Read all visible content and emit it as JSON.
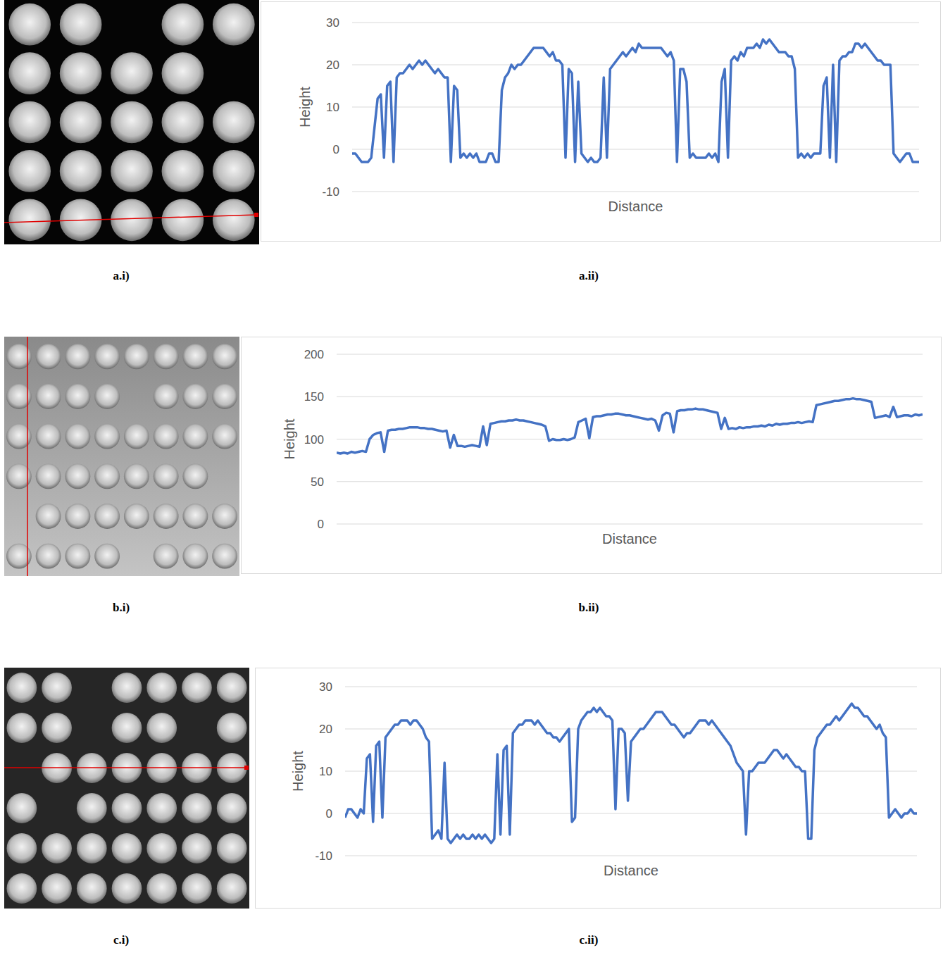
{
  "chart_data": [
    {
      "type": "line",
      "caption": "a.ii)",
      "x_label": "Distance",
      "y_label": "Height",
      "color": "#4472c4",
      "ylim": [
        -10,
        30
      ],
      "yticks": [
        -10,
        0,
        10,
        20,
        30
      ],
      "grid": true,
      "tick_labels": "y",
      "values": [
        -1,
        -1,
        -2,
        -3,
        -3,
        -3,
        -2,
        5,
        12,
        13,
        -2,
        15,
        16,
        -3,
        17,
        18,
        18,
        19,
        20,
        19,
        20,
        21,
        20,
        21,
        20,
        19,
        18,
        19,
        18,
        17,
        17,
        -3,
        15,
        14,
        -2,
        -1,
        -2,
        -1,
        -2,
        -1,
        -3,
        -3,
        -3,
        -1,
        -1,
        -3,
        -3,
        14,
        17,
        18,
        20,
        19,
        20,
        20,
        21,
        22,
        23,
        24,
        24,
        24,
        24,
        23,
        22,
        23,
        21,
        21,
        20,
        -2,
        19,
        18,
        -3,
        16,
        -1,
        -2,
        -3,
        -2,
        -3,
        -3,
        -2,
        17,
        -2,
        19,
        20,
        21,
        22,
        23,
        22,
        23,
        24,
        23,
        25,
        24,
        24,
        24,
        24,
        24,
        24,
        24,
        23,
        22,
        23,
        21,
        -3,
        19,
        19,
        16,
        -2,
        -1,
        -2,
        -2,
        -2,
        -2,
        -1,
        -2,
        -1,
        -3,
        16,
        19,
        -2,
        21,
        22,
        21,
        23,
        22,
        24,
        24,
        24,
        25,
        24,
        26,
        25,
        26,
        25,
        24,
        23,
        23,
        23,
        22,
        22,
        19,
        -2,
        -1,
        -2,
        -1,
        -2,
        -1,
        -1,
        -1,
        15,
        17,
        -2,
        20,
        -3,
        21,
        22,
        22,
        23,
        23,
        25,
        25,
        24,
        25,
        24,
        23,
        22,
        21,
        21,
        20,
        20,
        20,
        -1,
        -2,
        -3,
        -2,
        -1,
        -1,
        -3,
        -3,
        -3
      ]
    },
    {
      "type": "line",
      "caption": "b.ii)",
      "x_label": "Distance",
      "y_label": "Height",
      "color": "#4472c4",
      "ylim": [
        0,
        200
      ],
      "yticks": [
        0,
        50,
        100,
        150,
        200
      ],
      "grid": true,
      "tick_labels": "y",
      "values": [
        84,
        83,
        84,
        83,
        85,
        84,
        85,
        86,
        85,
        100,
        105,
        107,
        108,
        85,
        110,
        111,
        111,
        112,
        112,
        113,
        114,
        114,
        114,
        113,
        113,
        112,
        112,
        111,
        110,
        109,
        110,
        90,
        105,
        92,
        92,
        91,
        92,
        93,
        92,
        91,
        115,
        93,
        118,
        119,
        120,
        121,
        121,
        122,
        122,
        123,
        122,
        122,
        121,
        120,
        119,
        118,
        117,
        115,
        98,
        100,
        99,
        99,
        100,
        99,
        100,
        102,
        120,
        122,
        124,
        101,
        126,
        127,
        127,
        128,
        129,
        129,
        130,
        130,
        129,
        128,
        128,
        127,
        126,
        125,
        124,
        123,
        124,
        122,
        110,
        128,
        131,
        130,
        108,
        133,
        134,
        134,
        135,
        135,
        136,
        135,
        135,
        134,
        133,
        132,
        131,
        112,
        125,
        112,
        113,
        112,
        114,
        113,
        114,
        114,
        115,
        115,
        116,
        115,
        117,
        116,
        118,
        117,
        118,
        118,
        119,
        119,
        120,
        119,
        120,
        121,
        120,
        140,
        141,
        142,
        143,
        144,
        145,
        145,
        146,
        147,
        147,
        148,
        147,
        147,
        146,
        145,
        144,
        125,
        126,
        127,
        128,
        126,
        138,
        126,
        127,
        128,
        128,
        127,
        129,
        128,
        129
      ]
    },
    {
      "type": "line",
      "caption": "c.ii)",
      "x_label": "Distance",
      "y_label": "Height",
      "color": "#4472c4",
      "ylim": [
        -10,
        30
      ],
      "yticks": [
        -10,
        0,
        10,
        20,
        30
      ],
      "grid": true,
      "tick_labels": "y",
      "values": [
        -1,
        1,
        1,
        0,
        -1,
        1,
        0,
        13,
        14,
        -2,
        16,
        17,
        -1,
        18,
        19,
        20,
        21,
        21,
        22,
        22,
        22,
        21,
        22,
        22,
        21,
        20,
        18,
        17,
        -6,
        -5,
        -4,
        -6,
        12,
        -6,
        -7,
        -6,
        -5,
        -6,
        -5,
        -6,
        -6,
        -5,
        -6,
        -5,
        -6,
        -5,
        -6,
        -7,
        -6,
        14,
        -5,
        15,
        16,
        -5,
        19,
        20,
        21,
        21,
        22,
        22,
        22,
        21,
        22,
        21,
        20,
        19,
        19,
        18,
        18,
        17,
        18,
        19,
        20,
        -2,
        -1,
        20,
        22,
        23,
        24,
        24,
        25,
        24,
        25,
        24,
        23,
        23,
        22,
        1,
        20,
        20,
        19,
        3,
        17,
        18,
        19,
        20,
        20,
        21,
        22,
        23,
        24,
        24,
        24,
        23,
        22,
        21,
        21,
        20,
        19,
        18,
        19,
        19,
        20,
        21,
        22,
        22,
        22,
        21,
        22,
        21,
        20,
        19,
        18,
        17,
        16,
        14,
        12,
        11,
        10,
        -5,
        10,
        10,
        11,
        12,
        12,
        12,
        13,
        14,
        15,
        15,
        14,
        13,
        14,
        13,
        12,
        11,
        11,
        10,
        10,
        -6,
        -6,
        15,
        18,
        19,
        20,
        21,
        21,
        22,
        23,
        22,
        23,
        24,
        25,
        26,
        25,
        25,
        24,
        23,
        23,
        22,
        21,
        20,
        21,
        19,
        18,
        -1,
        0,
        1,
        0,
        -1,
        0,
        0,
        1,
        0,
        0
      ]
    }
  ],
  "images": [
    {
      "caption": "a.i)",
      "grid": [
        [
          1,
          1,
          0,
          1,
          1
        ],
        [
          1,
          1,
          1,
          1,
          0
        ],
        [
          1,
          1,
          1,
          1,
          1
        ],
        [
          1,
          1,
          1,
          1,
          1
        ],
        [
          1,
          1,
          1,
          1,
          1
        ]
      ]
    },
    {
      "caption": "b.i)",
      "grid": [
        [
          1,
          1,
          1,
          1,
          1,
          1,
          1,
          1
        ],
        [
          1,
          1,
          1,
          1,
          0,
          1,
          1,
          1
        ],
        [
          1,
          1,
          1,
          1,
          1,
          1,
          1,
          1
        ],
        [
          1,
          1,
          1,
          1,
          1,
          1,
          1,
          0
        ],
        [
          0,
          1,
          1,
          1,
          1,
          1,
          1,
          1
        ],
        [
          1,
          1,
          1,
          1,
          0,
          1,
          1,
          1
        ]
      ]
    },
    {
      "caption": "c.i)",
      "grid": [
        [
          1,
          1,
          0,
          1,
          1,
          1,
          1
        ],
        [
          1,
          1,
          0,
          1,
          1,
          0,
          1
        ],
        [
          0,
          1,
          1,
          1,
          1,
          1,
          1
        ],
        [
          1,
          0,
          1,
          1,
          1,
          1,
          1
        ],
        [
          1,
          1,
          1,
          1,
          1,
          1,
          1
        ],
        [
          1,
          1,
          1,
          1,
          1,
          1,
          1
        ]
      ]
    }
  ]
}
